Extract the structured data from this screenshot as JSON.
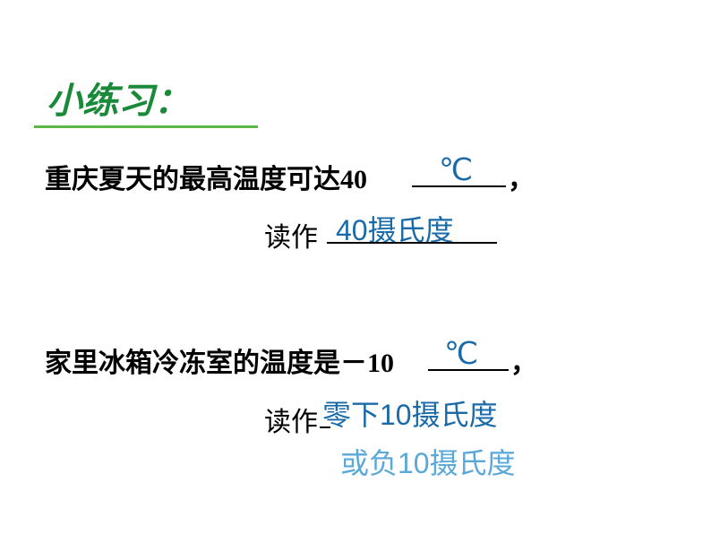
{
  "heading": "小练习：",
  "question1": {
    "text_before": "重庆夏天的最高温度可达40",
    "answer_unit": "℃",
    "comma": "，",
    "read_label": "读作",
    "answer_reading": "40摄氏度"
  },
  "question2": {
    "text_before": "家里冰箱冷冻室的温度是－10",
    "answer_unit": "℃",
    "comma": "，",
    "read_label": "读作",
    "answer_reading1": "零下10摄氏度",
    "answer_reading2": "或负10摄氏度"
  },
  "colors": {
    "heading_color": "#1a8a3a",
    "underline_color": "#5bb847",
    "text_color": "#000000",
    "answer_color": "#1a6aa8",
    "answer_alt_color": "#5aa8d8",
    "background": "#ffffff"
  },
  "fonts": {
    "heading_size": 40,
    "body_size": 30,
    "answer_size": 32
  }
}
